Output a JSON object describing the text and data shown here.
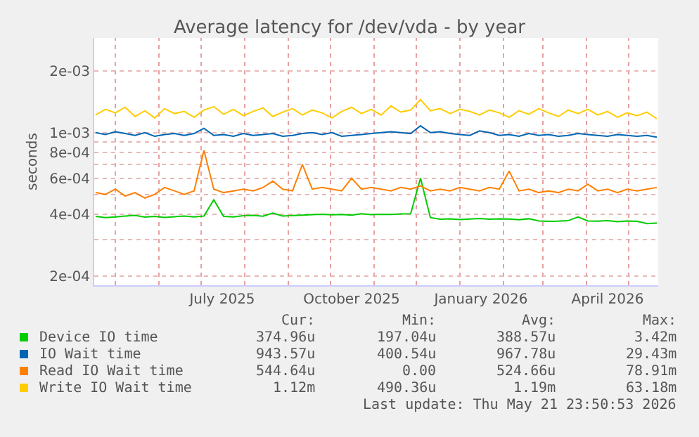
{
  "chart_data": {
    "type": "line",
    "title": "Average latency for /dev/vda - by year",
    "ylabel": "seconds",
    "x": [
      "2025-04-17",
      "2025-04-24",
      "2025-05-01",
      "2025-05-08",
      "2025-05-15",
      "2025-05-22",
      "2025-05-29",
      "2025-06-05",
      "2025-06-12",
      "2025-06-19",
      "2025-06-26",
      "2025-07-03",
      "2025-07-10",
      "2025-07-17",
      "2025-07-24",
      "2025-07-31",
      "2025-08-07",
      "2025-08-14",
      "2025-08-21",
      "2025-08-28",
      "2025-09-04",
      "2025-09-11",
      "2025-09-18",
      "2025-09-25",
      "2025-10-02",
      "2025-10-09",
      "2025-10-16",
      "2025-10-23",
      "2025-10-30",
      "2025-11-06",
      "2025-11-13",
      "2025-11-20",
      "2025-11-27",
      "2025-12-04",
      "2025-12-11",
      "2025-12-18",
      "2025-12-25",
      "2026-01-01",
      "2026-01-08",
      "2026-01-15",
      "2026-01-22",
      "2026-01-29",
      "2026-02-05",
      "2026-02-12",
      "2026-02-19",
      "2026-02-26",
      "2026-03-05",
      "2026-03-12",
      "2026-03-19",
      "2026-03-26",
      "2026-04-02",
      "2026-04-09",
      "2026-04-16",
      "2026-04-23",
      "2026-04-30",
      "2026-05-07",
      "2026-05-14",
      "2026-05-21"
    ],
    "series": [
      {
        "name": "Device IO time",
        "color": "#00cc00",
        "values": [
          0.00039,
          0.000385,
          0.000388,
          0.000392,
          0.000395,
          0.000387,
          0.00039,
          0.000386,
          0.000389,
          0.000392,
          0.000388,
          0.000392,
          0.00047,
          0.00039,
          0.000388,
          0.000393,
          0.000395,
          0.000391,
          0.000405,
          0.000392,
          0.000394,
          0.000396,
          0.000398,
          0.0004,
          0.000397,
          0.000399,
          0.000396,
          0.000402,
          0.000398,
          0.0004,
          0.000399,
          0.000401,
          0.000402,
          0.0006,
          0.000385,
          0.000378,
          0.00038,
          0.000377,
          0.000379,
          0.000381,
          0.000378,
          0.00038,
          0.000379,
          0.000376,
          0.00038,
          0.000371,
          0.000369,
          0.00037,
          0.000372,
          0.000388,
          0.000371,
          0.00037,
          0.000372,
          0.000368,
          0.000371,
          0.000369,
          0.00036,
          0.000362
        ]
      },
      {
        "name": "IO Wait time",
        "color": "#0066b3",
        "values": [
          0.001,
          0.00098,
          0.00101,
          0.00099,
          0.00097,
          0.001,
          0.00096,
          0.00098,
          0.00099,
          0.00097,
          0.00099,
          0.00105,
          0.00097,
          0.00098,
          0.00096,
          0.00099,
          0.00097,
          0.00098,
          0.00099,
          0.00096,
          0.00097,
          0.00099,
          0.001,
          0.00098,
          0.001,
          0.00096,
          0.00097,
          0.00098,
          0.00099,
          0.001,
          0.00101,
          0.001,
          0.00099,
          0.00108,
          0.001,
          0.00101,
          0.00099,
          0.00098,
          0.00097,
          0.00102,
          0.001,
          0.00097,
          0.00098,
          0.00096,
          0.00099,
          0.00097,
          0.00098,
          0.00096,
          0.00097,
          0.00099,
          0.00098,
          0.00097,
          0.00096,
          0.00098,
          0.00097,
          0.00096,
          0.00097,
          0.00095
        ]
      },
      {
        "name": "Read IO Wait time",
        "color": "#ff8000",
        "values": [
          0.00051,
          0.0005,
          0.00053,
          0.00049,
          0.00051,
          0.00048,
          0.0005,
          0.00054,
          0.00052,
          0.0005,
          0.00052,
          0.00082,
          0.00053,
          0.00051,
          0.00052,
          0.00053,
          0.00052,
          0.00054,
          0.00058,
          0.00053,
          0.00052,
          0.0007,
          0.00053,
          0.00054,
          0.00053,
          0.00052,
          0.0006,
          0.00053,
          0.00054,
          0.00053,
          0.00052,
          0.00054,
          0.00053,
          0.00055,
          0.00052,
          0.00053,
          0.00052,
          0.00054,
          0.00053,
          0.00052,
          0.00054,
          0.00053,
          0.00065,
          0.00052,
          0.00053,
          0.00051,
          0.00052,
          0.00051,
          0.00053,
          0.00052,
          0.00056,
          0.00052,
          0.00053,
          0.00051,
          0.00053,
          0.00052,
          0.00053,
          0.00054
        ]
      },
      {
        "name": "Write IO Wait time",
        "color": "#ffcc00",
        "values": [
          0.00122,
          0.0013,
          0.00125,
          0.00133,
          0.0012,
          0.00128,
          0.00118,
          0.00131,
          0.00124,
          0.00127,
          0.00119,
          0.00129,
          0.00134,
          0.00123,
          0.0013,
          0.00121,
          0.00127,
          0.00132,
          0.0012,
          0.00126,
          0.00131,
          0.00122,
          0.00129,
          0.00125,
          0.00118,
          0.00127,
          0.00133,
          0.00124,
          0.0013,
          0.00122,
          0.00135,
          0.00126,
          0.00129,
          0.00145,
          0.00128,
          0.00131,
          0.00124,
          0.0013,
          0.00127,
          0.00122,
          0.00129,
          0.00125,
          0.00119,
          0.00128,
          0.00123,
          0.00131,
          0.00125,
          0.0012,
          0.00129,
          0.00124,
          0.0013,
          0.00122,
          0.00127,
          0.00119,
          0.00125,
          0.00121,
          0.00126,
          0.00117
        ]
      }
    ],
    "log": "y",
    "ylim": [
      0.00018,
      0.0029
    ],
    "yticks": [
      {
        "value": 0.0002,
        "label": "2e-04"
      },
      {
        "value": 0.0003,
        "label": null
      },
      {
        "value": 0.0004,
        "label": "4e-04"
      },
      {
        "value": 0.0005,
        "label": null
      },
      {
        "value": 0.0006,
        "label": "6e-04"
      },
      {
        "value": 0.0007,
        "label": null
      },
      {
        "value": 0.0008,
        "label": "8e-04"
      },
      {
        "value": 0.0009,
        "label": null
      },
      {
        "value": 0.001,
        "label": "1e-03"
      },
      {
        "value": 0.002,
        "label": "2e-03"
      }
    ],
    "xlim": [
      "2025-04-16",
      "2026-05-22"
    ],
    "xticks": [
      {
        "value": "2025-05-01",
        "label": null
      },
      {
        "value": "2025-06-01",
        "label": null
      },
      {
        "value": "2025-07-01",
        "label": null
      },
      {
        "value": "2025-07-16",
        "label": "July 2025"
      },
      {
        "value": "2025-08-01",
        "label": null
      },
      {
        "value": "2025-09-01",
        "label": null
      },
      {
        "value": "2025-10-01",
        "label": null
      },
      {
        "value": "2025-10-16",
        "label": "October 2025"
      },
      {
        "value": "2025-11-01",
        "label": null
      },
      {
        "value": "2025-12-01",
        "label": null
      },
      {
        "value": "2026-01-01",
        "label": null
      },
      {
        "value": "2026-01-16",
        "label": "January 2026"
      },
      {
        "value": "2026-02-01",
        "label": null
      },
      {
        "value": "2026-03-01",
        "label": null
      },
      {
        "value": "2026-04-01",
        "label": null
      },
      {
        "value": "2026-04-16",
        "label": "April 2026"
      },
      {
        "value": "2026-05-01",
        "label": null
      }
    ],
    "grid": true,
    "legend": "bottom",
    "marker": "none",
    "line_style": "solid",
    "annotations": [
      "Cur:",
      "Min:",
      "Avg:",
      "Max:",
      "374.96u",
      "197.04u",
      "388.57u",
      "3.42m",
      "943.57u",
      "400.54u",
      "967.78u",
      "29.43m",
      "544.64u",
      "0.00",
      "524.66u",
      "78.91m",
      "1.12m",
      "490.36u",
      "1.19m",
      "63.18m",
      "Last update: Thu May 21 23:50:53 2026"
    ]
  }
}
